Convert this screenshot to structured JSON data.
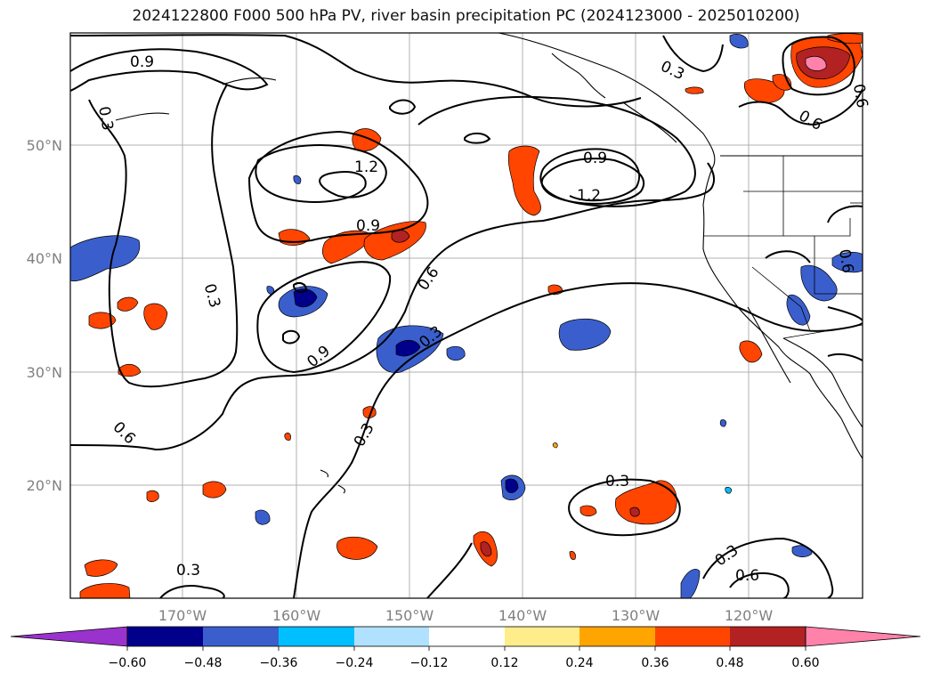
{
  "title": "2024122800 F000 500 hPa PV, river basin precipitation PC (2024123000 - 2025010200)",
  "lat_labels": [
    "50°N",
    "40°N",
    "30°N",
    "20°N"
  ],
  "lon_labels": [
    "170°W",
    "160°W",
    "150°W",
    "140°W",
    "130°W",
    "120°W"
  ],
  "contour_labels": [
    "0.9",
    "0.3",
    "0.3",
    "1.2",
    "0.9",
    "1.2",
    "0.9",
    "0.6",
    "0.3",
    "0.9",
    "0.3",
    "0.6",
    "0.3",
    "0.3",
    "0.3",
    "0.6",
    "0.6",
    "0.3",
    "0.6",
    "0.6"
  ],
  "colorbar": {
    "ticks": [
      "−0.60",
      "−0.48",
      "−0.36",
      "−0.24",
      "−0.12",
      "0.12",
      "0.24",
      "0.36",
      "0.48",
      "0.60"
    ],
    "colors": [
      "#9a32cd",
      "#00008b",
      "#3a5fcd",
      "#00bfff",
      "#b0e2ff",
      "#ffffff",
      "#ffec8b",
      "#ffa500",
      "#ff4500",
      "#b22222",
      "#ff82ab"
    ]
  }
}
